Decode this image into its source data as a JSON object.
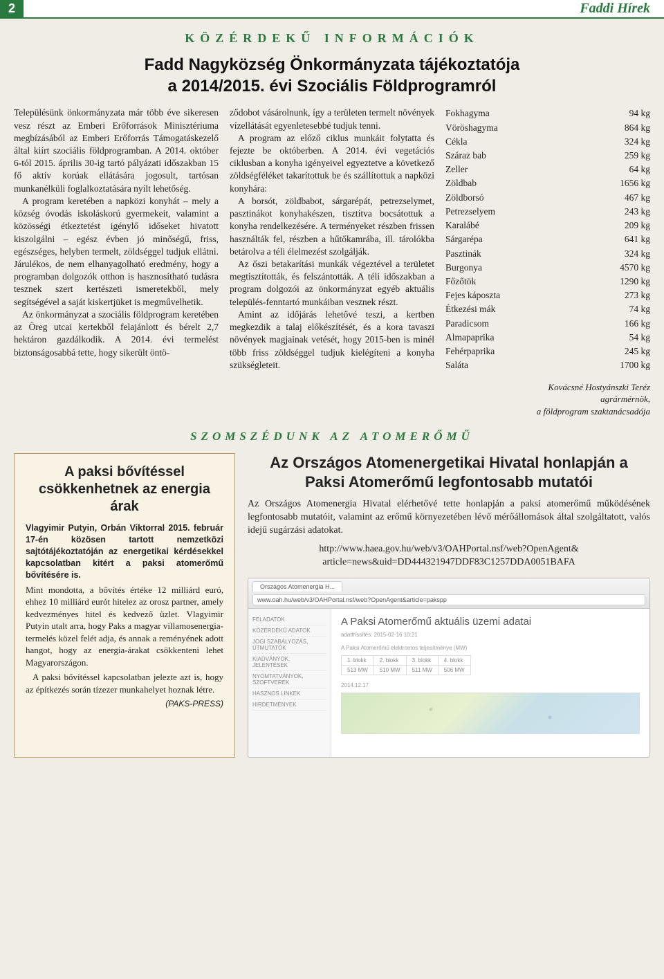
{
  "header": {
    "page_number": "2",
    "publication": "Faddi Hírek"
  },
  "section1": {
    "heading": "KÖZÉRDEKŰ INFORMÁCIÓK",
    "title_line1": "Fadd Nagyközség Önkormányzata tájékoztatója",
    "title_line2": "a 2014/2015. évi Szociális Földprogramról"
  },
  "article": {
    "col1_p1": "Településünk önkormányzata már több éve sikeresen vesz részt az Emberi Erőforrások Minisztériuma megbízásából az Emberi Erőforrás Támogatáskezelő által kiírt szociális földprogramban. A 2014. október 6-tól 2015. április 30-ig tartó pályázati időszakban 15 fő aktív korúak ellátására jogosult, tartósan munkanélküli foglalkoztatására nyílt lehetőség.",
    "col1_p2": "A program keretében a napközi konyhát – mely a község óvodás iskoláskorú gyermekeit, valamint a közösségi étkeztetést igénylő időseket hivatott kiszolgálni – egész évben jó minőségű, friss, egészséges, helyben termelt, zöldséggel tudjuk ellátni. Járulékos, de nem elhanyagolható eredmény, hogy a programban dolgozók otthon is hasznosítható tudásra tesznek szert kertészeti ismeretekből, mely segítségével a saját kiskertjüket is megművelhetik.",
    "col1_p3": "Az önkormányzat a szociális földprogram keretében az Öreg utcai kertekből felajánlott és bérelt 2,7 hektáron gazdálkodik. A 2014. évi termelést biztonságosabbá tette, hogy sikerült öntö-",
    "col2_p1": "ződobot vásárolnunk, így a területen termelt növények vízellátását egyenletesebbé tudjuk tenni.",
    "col2_p2": "A program az előző ciklus munkáit folytatta és fejezte be októberben. A 2014. évi vegetációs ciklusban a konyha igényeivel egyeztetve a következő zöldségféléket takarítottuk be és szállítottuk a napközi konyhára:",
    "col2_p3": "A borsót, zöldbabot, sárgarépát, petrezselymet, pasztinákot konyhakészen, tisztítva bocsátottuk a konyha rendelkezésére. A terményeket részben frissen használták fel, részben a hűtőkamrába, ill. tárolókba betárolva a téli élelmezést szolgálják.",
    "col2_p4": "Az őszi betakarítási munkák végeztével a területet megtisztították, és felszántották. A téli időszakban a program dolgozói az önkormányzat egyéb aktuális település-fenntartó munkáiban vesznek részt.",
    "col2_p5": "Amint az időjárás lehetővé teszi, a kertben megkezdik a talaj előkészítését, és a kora tavaszi növények magjainak vetését, hogy 2015-ben is minél több friss zöldséggel tudjuk kielégíteni a konyha szükségleteit.",
    "byline_name": "Kovácsné Hostyánszki Teréz",
    "byline_role1": "agrármérnök,",
    "byline_role2": "a földprogram szaktanácsadója"
  },
  "produce": [
    {
      "name": "Fokhagyma",
      "qty": "94 kg"
    },
    {
      "name": "Vöröshagyma",
      "qty": "864 kg"
    },
    {
      "name": "Cékla",
      "qty": "324 kg"
    },
    {
      "name": "Száraz bab",
      "qty": "259 kg"
    },
    {
      "name": "Zeller",
      "qty": "64 kg"
    },
    {
      "name": "Zöldbab",
      "qty": "1656 kg"
    },
    {
      "name": "Zöldborsó",
      "qty": "467 kg"
    },
    {
      "name": "Petrezselyem",
      "qty": "243 kg"
    },
    {
      "name": "Karalábé",
      "qty": "209 kg"
    },
    {
      "name": "Sárgarépa",
      "qty": "641 kg"
    },
    {
      "name": "Pasztinák",
      "qty": "324 kg"
    },
    {
      "name": "Burgonya",
      "qty": "4570 kg"
    },
    {
      "name": "Főzőtök",
      "qty": "1290 kg"
    },
    {
      "name": "Fejes káposzta",
      "qty": "273 kg"
    },
    {
      "name": "Étkezési mák",
      "qty": "74 kg"
    },
    {
      "name": "Paradicsom",
      "qty": "166 kg"
    },
    {
      "name": "Almapaprika",
      "qty": "54 kg"
    },
    {
      "name": "Fehérpaprika",
      "qty": "245 kg"
    },
    {
      "name": "Saláta",
      "qty": "1700 kg"
    }
  ],
  "section2": {
    "heading": "SZOMSZÉDUNK AZ ATOMERŐMŰ"
  },
  "box_left": {
    "title": "A paksi bővítéssel csökkenhetnek az energia árak",
    "lead": "Vlagyimir Putyin, Orbán Viktorral 2015. február 17-én közösen tartott nemzetközi sajtótájékoztatóján az energetikai kérdésekkel kapcsolatban kitért a paksi atomerőmű bővítésére is.",
    "p1": "Mint mondotta, a bővítés értéke 12 milliárd euró, ehhez 10 milliárd eurót hitelez az orosz partner, amely kedvezményes hitel és kedvező üzlet. Vlagyimir Putyin utalt arra, hogy Paks a magyar villamosenergia-termelés közel felét adja, és annak a reményének adott hangot, hogy az energia-árakat csökkenteni lehet Magyarországon.",
    "p2": "A paksi bővítéssel kapcsolatban jelezte azt is, hogy az építkezés során tízezer munkahelyet hoznak létre.",
    "source": "(PAKS-PRESS)"
  },
  "box_right": {
    "title_l1": "Az Országos Atomenergetikai Hivatal honlapján a",
    "title_l2": "Paksi Atomerőmű legfontosabb mutatói",
    "intro": "Az Országos Atomenergia Hivatal elérhetővé tette honlapján a paksi atomerőmű működésének legfontosabb mutatóit, valamint az erőmű környezetében lévő mérőállomások által szolgáltatott, valós idejű sugárzási adatokat.",
    "url_l1": "http://www.haea.gov.hu/web/v3/OAHPortal.nsf/web?OpenAgent&",
    "url_l2": "article=news&uid=DD444321947DDF83C1257DDA0051BAFA"
  },
  "browser": {
    "tab": "Országos Atomenergia H...",
    "url": "www.oah.hu/web/v3/OAHPortal.nsf/web?OpenAgent&article=pakspp",
    "sidebar": [
      "FELADATOK",
      "KÖZÉRDEKŰ ADATOK",
      "JOGI SZABÁLYOZÁS, ÚTMUTATÓK",
      "KIADVÁNYOK, JELENTÉSEK",
      "NYOMTATVÁNYOK, SZOFTVEREK",
      "HASZNOS LINKEK",
      "HIRDETMÉNYEK"
    ],
    "main_title": "A Paksi Atomerőmű aktuális üzemi adatai",
    "timestamp": "adatfrissítés: 2015-02-16 10:21",
    "sub_line": "A Paksi Atomerőmű elektromos teljesítménye (MW)",
    "table": [
      [
        "1. blokk",
        "2. blokk",
        "3. blokk",
        "4. blokk"
      ],
      [
        "513 MW",
        "510 MW",
        "511 MW",
        "506 MW"
      ]
    ],
    "date": "2014.12.17"
  },
  "colors": {
    "green": "#2a7a3f",
    "cream_bg": "#f0ede6",
    "box_bg": "#f8f3e4",
    "box_border": "#b89a5a"
  }
}
